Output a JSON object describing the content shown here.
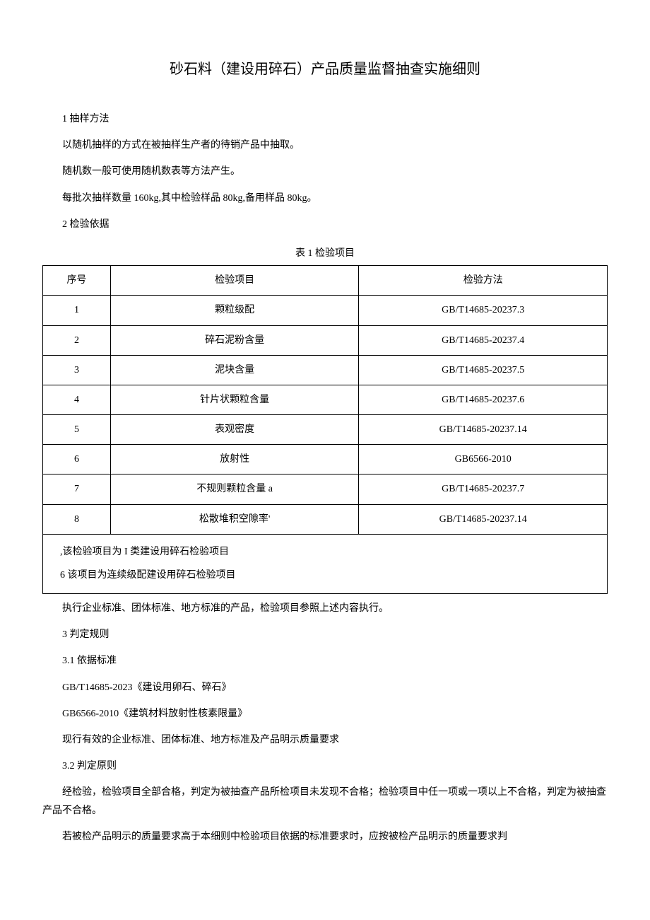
{
  "title": "砂石料（建设用碎石）产品质量监督抽查实施细则",
  "section1": {
    "heading": "1 抽样方法",
    "p1": "以随机抽样的方式在被抽样生产者的待销产品中抽取。",
    "p2": "随机数一般可使用随机数表等方法产生。",
    "p3": "每批次抽样数量 160kg,其中检验样品 80kg,备用样品 80kg。"
  },
  "section2": {
    "heading": "2 检验依据",
    "tableCaption": "表 1 检验项目",
    "headers": {
      "seq": "序号",
      "item": "检验项目",
      "method": "检验方法"
    },
    "rows": [
      {
        "seq": "1",
        "item": "颗粒级配",
        "method": "GB/T14685-20237.3"
      },
      {
        "seq": "2",
        "item": "碎石泥粉含量",
        "method": "GB/T14685-20237.4"
      },
      {
        "seq": "3",
        "item": "泥块含量",
        "method": "GB/T14685-20237.5"
      },
      {
        "seq": "4",
        "item": "针片状颗粒含量",
        "method": "GB/T14685-20237.6"
      },
      {
        "seq": "5",
        "item": "表观密度",
        "method": "GB/T14685-20237.14"
      },
      {
        "seq": "6",
        "item": "放射性",
        "method": "GB6566-2010"
      },
      {
        "seq": "7",
        "item": "不规则颗粒含量 a",
        "method": "GB/T14685-20237.7"
      },
      {
        "seq": "8",
        "item": "松散堆积空隙率'",
        "method": "GB/T14685-20237.14"
      }
    ],
    "note1": ",该检验项目为 I 类建设用碎石检验项目",
    "note2": "6 该项目为连续级配建设用碎石检验项目",
    "afterTable": "执行企业标准、团体标准、地方标准的产品，检验项目参照上述内容执行。"
  },
  "section3": {
    "heading": "3 判定规则",
    "sub1": {
      "heading": "3.1 依据标准",
      "p1": "GB/T14685-2023《建设用卵石、碎石》",
      "p2": "GB6566-2010《建筑材料放射性核素限量》",
      "p3": "现行有效的企业标准、团体标准、地方标准及产品明示质量要求"
    },
    "sub2": {
      "heading": "3.2 判定原则",
      "p1": "经检验，检验项目全部合格，判定为被抽查产品所检项目未发现不合格；检验项目中任一项或一项以上不合格，判定为被抽查产品不合格。",
      "p2": "若被检产品明示的质量要求高于本细则中检验项目依据的标准要求时，应按被检产品明示的质量要求判"
    }
  }
}
